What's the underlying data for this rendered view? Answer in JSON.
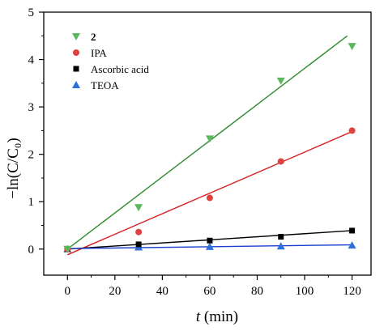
{
  "chart_data": {
    "type": "scatter",
    "xlabel_italic": "t",
    "xlabel_rest": " (min)",
    "ylabel": "−ln(C/C₀)",
    "xlim": [
      -10,
      128
    ],
    "ylim": [
      -0.55,
      5
    ],
    "xticks": [
      0,
      20,
      40,
      60,
      80,
      100,
      120
    ],
    "xtick_labels": [
      "0",
      "20",
      "40",
      "60",
      "80",
      "100",
      "120"
    ],
    "yticks": [
      0,
      1,
      2,
      3,
      4,
      5
    ],
    "ytick_labels": [
      "0",
      "1",
      "2",
      "3",
      "4",
      "5"
    ],
    "grid": false,
    "legend_position": "top-left",
    "series": [
      {
        "name": "2",
        "marker": "triangle-down",
        "color": "#5cb85c",
        "line_color": "#2e8b2e",
        "x": [
          0,
          30,
          60,
          90,
          120
        ],
        "y": [
          0,
          0.88,
          2.33,
          3.55,
          4.28
        ],
        "fit": [
          [
            0,
            0
          ],
          [
            118,
            4.5
          ]
        ]
      },
      {
        "name": "IPA",
        "marker": "circle",
        "color": "#e04040",
        "line_color": "#d62020",
        "x": [
          0,
          30,
          60,
          90,
          120
        ],
        "y": [
          0,
          0.36,
          1.08,
          1.85,
          2.5
        ],
        "fit": [
          [
            0,
            -0.12
          ],
          [
            120,
            2.48
          ]
        ]
      },
      {
        "name": "Ascorbic acid",
        "marker": "square",
        "color": "#000000",
        "line_color": "#000000",
        "x": [
          0,
          30,
          60,
          90,
          120
        ],
        "y": [
          0,
          0.1,
          0.18,
          0.26,
          0.39
        ],
        "fit": [
          [
            0,
            0
          ],
          [
            120,
            0.39
          ]
        ]
      },
      {
        "name": "TEOA",
        "marker": "triangle-up",
        "color": "#2f6fdc",
        "line_color": "#1a3fd0",
        "x": [
          0,
          30,
          60,
          90,
          120
        ],
        "y": [
          0,
          0.04,
          0.05,
          0.06,
          0.08
        ],
        "fit": [
          [
            0,
            0.01
          ],
          [
            120,
            0.09
          ]
        ]
      }
    ]
  }
}
